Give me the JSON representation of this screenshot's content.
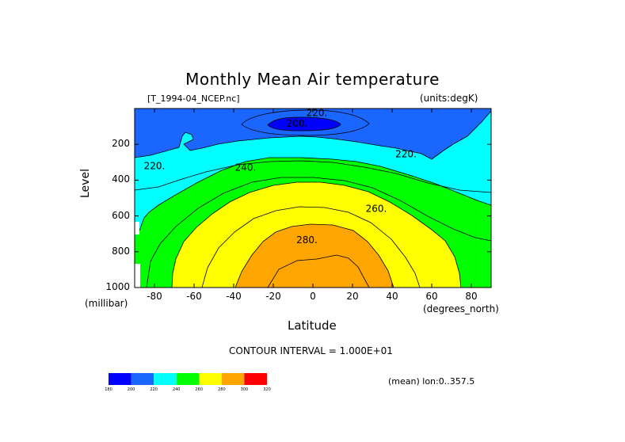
{
  "title": "Monthly Mean Air temperature",
  "file_label": "[T_1994-04_NCEP.nc]",
  "units_label": "(units:degK)",
  "contour_interval": "CONTOUR INTERVAL = 1.000E+01",
  "mean_label": "(mean) lon:0..357.5",
  "chart_data": {
    "type": "contour",
    "title": "Monthly Mean Air temperature",
    "xlabel": "Latitude",
    "xunit": "(degrees_north)",
    "ylabel": "Level",
    "yunit": "(millibar)",
    "xlim": [
      -90,
      90
    ],
    "ylim": [
      1000,
      0
    ],
    "xticks": [
      "-80",
      "-60",
      "-40",
      "-20",
      "0",
      "20",
      "40",
      "60",
      "80"
    ],
    "xtick_values": [
      -80,
      -60,
      -40,
      -20,
      0,
      20,
      40,
      60,
      80
    ],
    "yticks": [
      "200",
      "400",
      "600",
      "800",
      "1000"
    ],
    "ytick_values": [
      200,
      400,
      600,
      800,
      1000
    ],
    "contour_labels": [
      {
        "text": "220",
        "lat": -80,
        "lev": 320
      },
      {
        "text": "240",
        "lat": -34,
        "lev": 330
      },
      {
        "text": "220",
        "lat": 47,
        "lev": 255
      },
      {
        "text": "200",
        "lat": -8,
        "lev": 85
      },
      {
        "text": "260",
        "lat": 32,
        "lev": 560
      },
      {
        "text": "280",
        "lat": -3,
        "lev": 735
      },
      {
        "text": "220",
        "lat": 2,
        "lev": 25
      }
    ],
    "colorbar": {
      "levels": [
        "180",
        "200",
        "220",
        "240",
        "260",
        "280",
        "300",
        "320"
      ],
      "colors": [
        "#0000ff",
        "#1a66ff",
        "#00ffff",
        "#00ff00",
        "#ffff00",
        "#ffa500",
        "#ff0000"
      ]
    }
  }
}
